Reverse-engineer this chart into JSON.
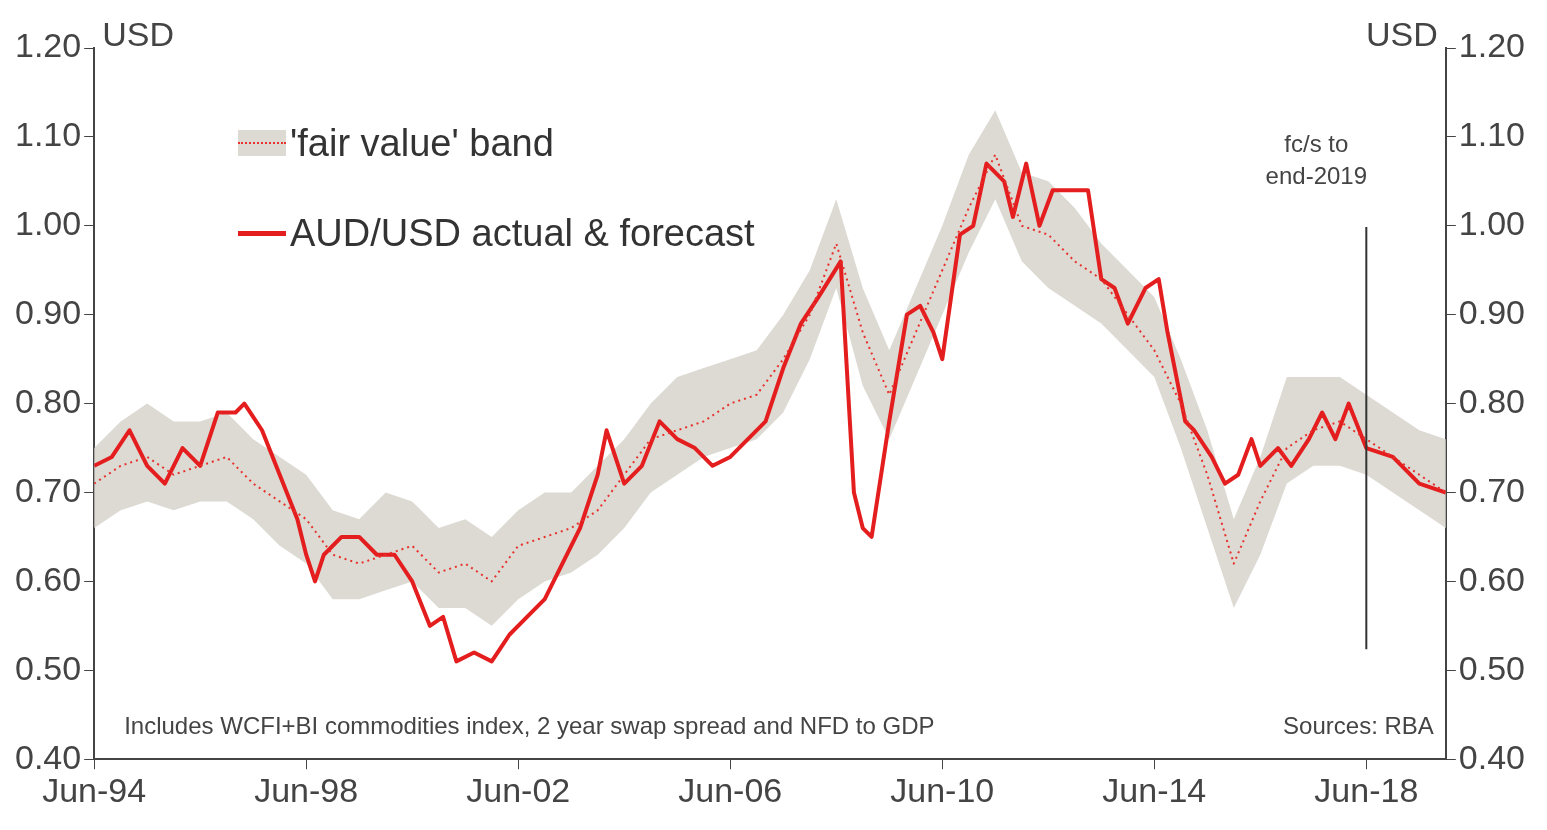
{
  "chart_data": {
    "type": "line",
    "ylabel": "USD",
    "y2label": "USD",
    "xlim": [
      "1994-06",
      "2019-12"
    ],
    "xticks": [
      {
        "value": "1994-06",
        "label": "Jun-94"
      },
      {
        "value": "1998-06",
        "label": "Jun-98"
      },
      {
        "value": "2002-06",
        "label": "Jun-02"
      },
      {
        "value": "2006-06",
        "label": "Jun-06"
      },
      {
        "value": "2010-06",
        "label": "Jun-10"
      },
      {
        "value": "2014-06",
        "label": "Jun-14"
      },
      {
        "value": "2018-06",
        "label": "Jun-18"
      }
    ],
    "ylim": [
      0.4,
      1.2
    ],
    "yticks": [
      {
        "value": 0.4,
        "label": "0.40"
      },
      {
        "value": 0.5,
        "label": "0.50"
      },
      {
        "value": 0.6,
        "label": "0.60"
      },
      {
        "value": 0.7,
        "label": "0.70"
      },
      {
        "value": 0.8,
        "label": "0.80"
      },
      {
        "value": 0.9,
        "label": "0.90"
      },
      {
        "value": 1.0,
        "label": "1.00"
      },
      {
        "value": 1.1,
        "label": "1.10"
      },
      {
        "value": 1.2,
        "label": "1.20"
      }
    ],
    "y2lim": [
      0.4,
      1.2
    ],
    "y2ticks": [
      {
        "value": 0.4,
        "label": "0.40"
      },
      {
        "value": 0.5,
        "label": "0.50"
      },
      {
        "value": 0.6,
        "label": "0.60"
      },
      {
        "value": 0.7,
        "label": "0.70"
      },
      {
        "value": 0.8,
        "label": "0.80"
      },
      {
        "value": 0.9,
        "label": "0.90"
      },
      {
        "value": 1.0,
        "label": "1.00"
      },
      {
        "value": 1.1,
        "label": "1.10"
      },
      {
        "value": 1.2,
        "label": "1.20"
      }
    ],
    "grid": false,
    "legend": "top left",
    "marker": "none",
    "series": [
      {
        "name": "'fair value' band",
        "color": "#e8302c",
        "line_style": "dotted",
        "x": [
          "1994-06",
          "1994-12",
          "1995-06",
          "1995-12",
          "1996-06",
          "1996-12",
          "1997-06",
          "1997-12",
          "1998-06",
          "1998-12",
          "1999-06",
          "1999-12",
          "2000-06",
          "2000-12",
          "2001-06",
          "2001-12",
          "2002-06",
          "2002-12",
          "2003-06",
          "2003-12",
          "2004-06",
          "2004-12",
          "2005-06",
          "2005-12",
          "2006-06",
          "2006-12",
          "2007-06",
          "2007-12",
          "2008-06",
          "2008-12",
          "2009-06",
          "2009-12",
          "2010-06",
          "2010-12",
          "2011-06",
          "2011-12",
          "2012-06",
          "2012-12",
          "2013-06",
          "2013-12",
          "2014-06",
          "2014-12",
          "2015-06",
          "2015-12",
          "2016-06",
          "2016-12",
          "2017-06",
          "2017-12",
          "2018-06",
          "2018-12",
          "2019-06",
          "2019-12"
        ],
        "lower": [
          0.66,
          0.68,
          0.69,
          0.68,
          0.69,
          0.69,
          0.67,
          0.64,
          0.62,
          0.58,
          0.58,
          0.59,
          0.6,
          0.57,
          0.57,
          0.55,
          0.58,
          0.6,
          0.61,
          0.63,
          0.66,
          0.7,
          0.72,
          0.74,
          0.75,
          0.76,
          0.79,
          0.85,
          0.93,
          0.82,
          0.76,
          0.83,
          0.9,
          0.97,
          1.03,
          0.96,
          0.93,
          0.91,
          0.89,
          0.86,
          0.83,
          0.75,
          0.66,
          0.57,
          0.63,
          0.71,
          0.73,
          0.73,
          0.72,
          0.7,
          0.68,
          0.66
        ],
        "upper": [
          0.75,
          0.78,
          0.8,
          0.78,
          0.78,
          0.79,
          0.76,
          0.74,
          0.72,
          0.68,
          0.67,
          0.7,
          0.69,
          0.66,
          0.67,
          0.65,
          0.68,
          0.7,
          0.7,
          0.73,
          0.76,
          0.8,
          0.83,
          0.84,
          0.85,
          0.86,
          0.9,
          0.95,
          1.03,
          0.93,
          0.86,
          0.93,
          1.0,
          1.08,
          1.13,
          1.06,
          1.05,
          1.02,
          0.98,
          0.95,
          0.92,
          0.85,
          0.77,
          0.67,
          0.74,
          0.83,
          0.83,
          0.83,
          0.81,
          0.79,
          0.77,
          0.76
        ],
        "values": [
          0.71,
          0.73,
          0.74,
          0.72,
          0.73,
          0.74,
          0.71,
          0.69,
          0.67,
          0.63,
          0.62,
          0.63,
          0.64,
          0.61,
          0.62,
          0.6,
          0.64,
          0.65,
          0.66,
          0.68,
          0.72,
          0.76,
          0.77,
          0.78,
          0.8,
          0.81,
          0.85,
          0.9,
          0.98,
          0.88,
          0.81,
          0.88,
          0.95,
          1.02,
          1.08,
          1.0,
          0.99,
          0.96,
          0.94,
          0.9,
          0.86,
          0.8,
          0.72,
          0.62,
          0.69,
          0.75,
          0.77,
          0.78,
          0.76,
          0.74,
          0.72,
          0.7
        ]
      },
      {
        "name": "AUD/USD actual & forecast",
        "color": "#e41e1e",
        "line_style": "solid",
        "x": [
          "1994-06",
          "1994-10",
          "1995-02",
          "1995-06",
          "1995-10",
          "1996-02",
          "1996-06",
          "1996-10",
          "1997-02",
          "1997-04",
          "1997-08",
          "1997-12",
          "1998-04",
          "1998-06",
          "1998-08",
          "1998-10",
          "1999-02",
          "1999-06",
          "1999-10",
          "2000-02",
          "2000-06",
          "2000-10",
          "2001-01",
          "2001-04",
          "2001-08",
          "2001-12",
          "2002-04",
          "2002-08",
          "2002-12",
          "2003-04",
          "2003-08",
          "2003-12",
          "2004-02",
          "2004-06",
          "2004-10",
          "2005-02",
          "2005-06",
          "2005-10",
          "2006-02",
          "2006-06",
          "2006-10",
          "2007-02",
          "2007-06",
          "2007-10",
          "2008-02",
          "2008-07",
          "2008-10",
          "2008-12",
          "2009-02",
          "2009-06",
          "2009-10",
          "2010-01",
          "2010-04",
          "2010-06",
          "2010-10",
          "2011-01",
          "2011-04",
          "2011-08",
          "2011-10",
          "2012-01",
          "2012-04",
          "2012-07",
          "2012-10",
          "2013-03",
          "2013-06",
          "2013-09",
          "2013-12",
          "2014-04",
          "2014-07",
          "2014-09",
          "2015-01",
          "2015-03",
          "2015-07",
          "2015-10",
          "2016-01",
          "2016-04",
          "2016-06",
          "2016-10",
          "2017-01",
          "2017-05",
          "2017-08",
          "2017-11",
          "2018-02",
          "2018-06",
          "2018-12",
          "2019-06",
          "2019-12"
        ],
        "values": [
          0.73,
          0.74,
          0.77,
          0.73,
          0.71,
          0.75,
          0.73,
          0.79,
          0.79,
          0.8,
          0.77,
          0.72,
          0.67,
          0.63,
          0.6,
          0.63,
          0.65,
          0.65,
          0.63,
          0.63,
          0.6,
          0.55,
          0.56,
          0.51,
          0.52,
          0.51,
          0.54,
          0.56,
          0.58,
          0.62,
          0.66,
          0.72,
          0.77,
          0.71,
          0.73,
          0.78,
          0.76,
          0.75,
          0.73,
          0.74,
          0.76,
          0.78,
          0.84,
          0.89,
          0.92,
          0.96,
          0.7,
          0.66,
          0.65,
          0.78,
          0.9,
          0.91,
          0.88,
          0.85,
          0.99,
          1.0,
          1.07,
          1.05,
          1.01,
          1.07,
          1.0,
          1.04,
          1.04,
          1.04,
          0.94,
          0.93,
          0.89,
          0.93,
          0.94,
          0.88,
          0.78,
          0.77,
          0.74,
          0.71,
          0.72,
          0.76,
          0.73,
          0.75,
          0.73,
          0.76,
          0.79,
          0.76,
          0.8,
          0.75,
          0.74,
          0.71,
          0.7
        ]
      }
    ],
    "ref_lines": [
      {
        "axis": "x",
        "value": "2018-06",
        "label": "fc/s to end-2019",
        "color": "#333333"
      }
    ],
    "annotations": [
      "Includes WCFI+BI commodities index, 2 year swap spread and NFD to GDP",
      "Sources: RBA"
    ]
  }
}
